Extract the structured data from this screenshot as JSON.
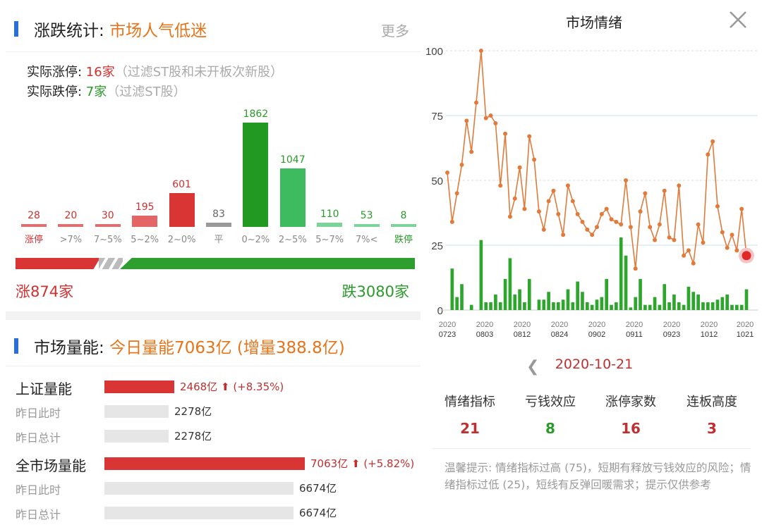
{
  "limit_section": {
    "title_prefix": "涨跌统计: ",
    "title_highlight": "市场人气低迷",
    "more_label": "更多",
    "limit_up_label": "实际涨停: ",
    "limit_up_value": "16家",
    "limit_up_note": "（过滤ST股和未开板次新股）",
    "limit_down_label": "实际跌停: ",
    "limit_down_value": "7家",
    "limit_down_note": "（过滤ST股）"
  },
  "distribution": {
    "max_value": 1862,
    "columns": [
      {
        "label": "涨停",
        "value": "28",
        "color": "#e07070",
        "label_color": "#d03030"
      },
      {
        "label": ">7%",
        "value": "20",
        "color": "#e07070",
        "label_color": "#888888"
      },
      {
        "label": "7~5%",
        "value": "30",
        "color": "#e07070",
        "label_color": "#888888"
      },
      {
        "label": "5~2%",
        "value": "195",
        "color": "#e46565",
        "label_color": "#888888"
      },
      {
        "label": "2~0%",
        "value": "601",
        "color": "#d93535",
        "label_color": "#888888"
      },
      {
        "label": "平",
        "value": "83",
        "color": "#9a9a9a",
        "label_color": "#888888"
      },
      {
        "label": "0~2%",
        "value": "1862",
        "color": "#229a22",
        "label_color": "#888888"
      },
      {
        "label": "2~5%",
        "value": "1047",
        "color": "#3dbb5e",
        "label_color": "#888888"
      },
      {
        "label": "5~7%",
        "value": "110",
        "color": "#7cd49a",
        "label_color": "#888888"
      },
      {
        "label": "7%<",
        "value": "53",
        "color": "#7cd49a",
        "label_color": "#888888"
      },
      {
        "label": "跌停",
        "value": "8",
        "color": "#7cd49a",
        "label_color": "#2a9a2a"
      }
    ],
    "rise_total": "涨874家",
    "fall_total": "跌3080家"
  },
  "volume_section": {
    "title_prefix": "市场量能: ",
    "title_highlight": "今日量能7063亿 (增量388.8亿)",
    "sh": {
      "name": "上证量能",
      "value": "2468亿",
      "change": "(+8.35%)",
      "level": 0.35,
      "yesterday_now_label": "昨日此时",
      "yesterday_now_value": "2278亿",
      "yesterday_now_level": 0.32,
      "yesterday_total_label": "昨日总计",
      "yesterday_total_value": "2278亿",
      "yesterday_total_level": 0.32
    },
    "all": {
      "name": "全市场量能",
      "value": "7063亿",
      "change": "(+5.82%)",
      "level": 1.0,
      "yesterday_now_label": "昨日此时",
      "yesterday_now_value": "6674亿",
      "yesterday_now_level": 0.945,
      "yesterday_total_label": "昨日总计",
      "yesterday_total_value": "6674亿",
      "yesterday_total_level": 0.945
    }
  },
  "sentiment_panel": {
    "title": "市场情绪",
    "date": "2020-10-21",
    "metrics": [
      {
        "label": "情绪指标",
        "value": "21",
        "color": "red"
      },
      {
        "label": "亏钱效应",
        "value": "8",
        "color": "green"
      },
      {
        "label": "涨停家数",
        "value": "16",
        "color": "red"
      },
      {
        "label": "连板高度",
        "value": "3",
        "color": "red"
      }
    ],
    "tip": "温馨提示: 情绪指标过高 (75)，短期有释放亏钱效应的风险；情绪指标过低 (25)，短线有反弹回暖需求；提示仅供参考"
  },
  "chart_data": {
    "type": "line",
    "ylim": [
      0,
      100
    ],
    "yticks": [
      0,
      25,
      50,
      75,
      100
    ],
    "xtick_labels": [
      {
        "index": 0,
        "top": "2020",
        "bottom": "0723"
      },
      {
        "index": 5,
        "top": "2020",
        "bottom": "0803"
      },
      {
        "index": 10,
        "top": "2020",
        "bottom": "0812"
      },
      {
        "index": 15,
        "top": "2020",
        "bottom": "0824"
      },
      {
        "index": 20,
        "top": "2020",
        "bottom": "0902"
      },
      {
        "index": 25,
        "top": "2020",
        "bottom": "0911"
      },
      {
        "index": 30,
        "top": "2020",
        "bottom": "0923"
      },
      {
        "index": 35,
        "top": "2020",
        "bottom": "1012"
      },
      {
        "index": 40,
        "top": "2020",
        "bottom": "1021"
      }
    ],
    "series": [
      {
        "type": "line",
        "color": "#e07b3c",
        "values": [
          53,
          34,
          45,
          56,
          73,
          61,
          80,
          100,
          74,
          75,
          72,
          48,
          68,
          36,
          43,
          55,
          39,
          67,
          58,
          38,
          31,
          42,
          46,
          37,
          29,
          48,
          42,
          37,
          34,
          31,
          29,
          32,
          37,
          39,
          35,
          34,
          33,
          50,
          32,
          16,
          38,
          45,
          32,
          27,
          33,
          46,
          28,
          27,
          48,
          21,
          23,
          18,
          33,
          26,
          60,
          65,
          40,
          30,
          24,
          29,
          23,
          39,
          21
        ]
      },
      {
        "type": "bar",
        "color": "#2ea62e",
        "values": [
          0,
          16,
          5,
          10,
          0,
          2,
          0,
          27,
          3,
          3,
          6,
          3,
          12,
          20,
          6,
          8,
          3,
          12,
          0,
          4,
          4,
          7,
          3,
          3,
          4,
          8,
          3,
          11,
          7,
          3,
          2,
          4,
          5,
          12,
          2,
          3,
          28,
          21,
          1,
          5,
          12,
          2,
          2,
          5,
          2,
          10,
          3,
          6,
          3,
          2,
          9,
          7,
          6,
          3,
          3,
          3,
          4,
          5,
          6,
          2,
          2,
          2,
          8
        ]
      }
    ]
  }
}
